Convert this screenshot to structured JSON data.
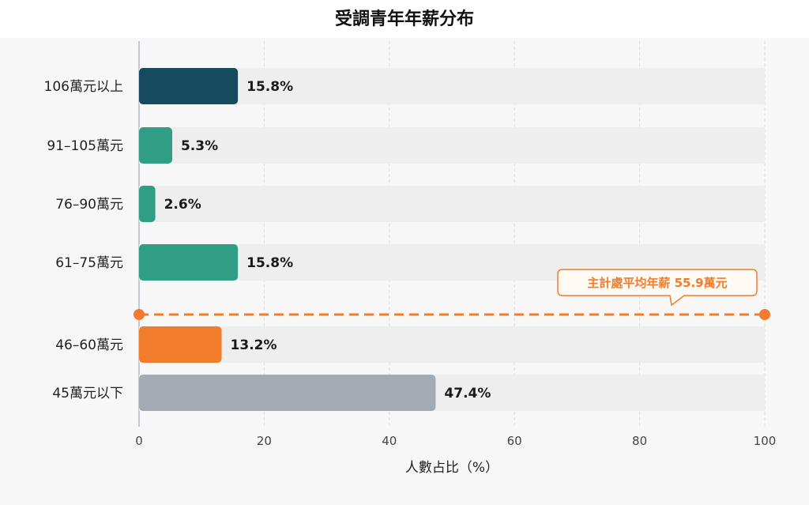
{
  "title": "受調青年年薪分布",
  "chart_data": {
    "type": "bar",
    "orientation": "horizontal",
    "title": "受調青年年薪分布",
    "xlabel": "人數占比（%）",
    "ylabel": "",
    "xlim": [
      0,
      100
    ],
    "xticks": [
      "0",
      "20",
      "40",
      "60",
      "80",
      "100"
    ],
    "grid": "vertical dashed",
    "categories": [
      "106萬元以上",
      "91–105萬元",
      "76–90萬元",
      "61–75萬元",
      "46–60萬元",
      "45萬元以下"
    ],
    "values": [
      15.8,
      5.3,
      2.6,
      15.8,
      13.2,
      47.4
    ],
    "value_labels": [
      "15.8%",
      "5.3%",
      "2.6%",
      "15.8%",
      "13.2%",
      "47.4%"
    ],
    "bar_colors": [
      "#164a5f",
      "#2f9e85",
      "#2f9e85",
      "#2f9e85",
      "#f07c2c",
      "#a3acb4"
    ],
    "reference_line": {
      "label": "主計處平均年薪 55.9萬元",
      "position": "between 61–75萬元 and 46–60萬元",
      "color": "#f07c2c"
    }
  }
}
